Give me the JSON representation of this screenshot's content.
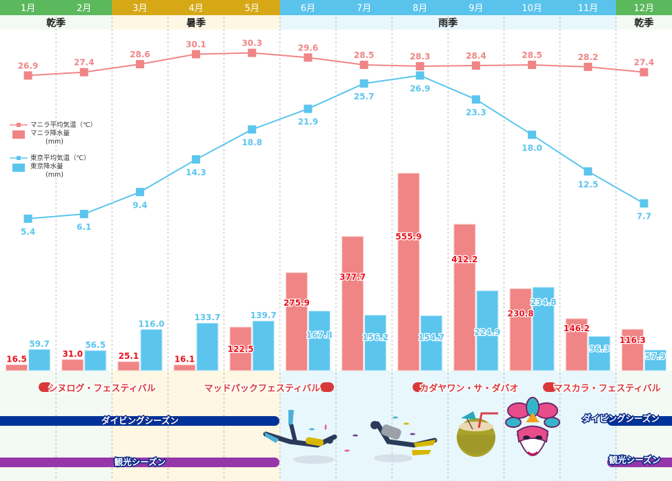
{
  "chart_data": {
    "type": "bar+line",
    "title": "",
    "categories": [
      "1月",
      "2月",
      "3月",
      "4月",
      "5月",
      "6月",
      "7月",
      "8月",
      "9月",
      "10月",
      "11月",
      "12月"
    ],
    "month_colors": [
      "#5cb85c",
      "#5cb85c",
      "#d6a816",
      "#d6a816",
      "#d6a816",
      "#59c3ec",
      "#59c3ec",
      "#59c3ec",
      "#59c3ec",
      "#59c3ec",
      "#59c3ec",
      "#5cb85c"
    ],
    "seasons": [
      {
        "label": "乾季",
        "start": 0,
        "end": 1,
        "bg": "#f2faf3"
      },
      {
        "label": "暑季",
        "start": 2,
        "end": 4,
        "bg": "#fdf7e4"
      },
      {
        "label": "雨季",
        "start": 5,
        "end": 10,
        "bg": "#e8f7fc"
      },
      {
        "label": "乾季",
        "start": 11,
        "end": 11,
        "bg": "#f2faf3"
      }
    ],
    "series": [
      {
        "name": "マニラ平均気温（℃）",
        "kind": "line",
        "color": "#f08585",
        "values": [
          26.9,
          27.4,
          28.6,
          30.1,
          30.3,
          29.6,
          28.5,
          28.3,
          28.4,
          28.5,
          28.2,
          27.4
        ]
      },
      {
        "name": "マニラ降水量（mm）",
        "kind": "bar",
        "color": "#f08585",
        "label_color": "#e8101c",
        "values": [
          16.5,
          31.0,
          25.1,
          16.1,
          122.5,
          275.9,
          377.7,
          555.9,
          412.2,
          230.8,
          146.2,
          116.3
        ]
      },
      {
        "name": "東京平均気温（℃）",
        "kind": "line",
        "color": "#5bc5ee",
        "values": [
          5.4,
          6.1,
          9.4,
          14.3,
          18.8,
          21.9,
          25.7,
          26.9,
          23.3,
          18.0,
          12.5,
          7.7
        ]
      },
      {
        "name": "東京降水量（mm）",
        "kind": "bar",
        "color": "#5bc5ee",
        "label_color": "#5bc5ee",
        "values": [
          59.7,
          56.5,
          116.0,
          133.7,
          139.7,
          167.8,
          156.2,
          154.7,
          224.9,
          234.8,
          96.3,
          57.9
        ]
      }
    ],
    "legend": {
      "position": "left",
      "items": [
        {
          "label1": "マニラ平均気温（℃）",
          "type": "line",
          "color": "#f08585"
        },
        {
          "label1": "マニラ降水量",
          "label2": "(mm)",
          "type": "bar",
          "color": "#f08585"
        },
        {
          "label1": "東京平均気温（℃）",
          "type": "line",
          "color": "#5bc5ee"
        },
        {
          "label1": "東京降水量",
          "label2": "(mm)",
          "type": "bar",
          "color": "#5bc5ee"
        }
      ]
    },
    "temp_range": [
      0,
      35
    ],
    "precip_range": [
      0,
      600
    ],
    "grid": "vertical dashed month separators"
  },
  "events": {
    "festivals": [
      {
        "label": "シヌログ・フェスティバル",
        "month": 1,
        "side": "left"
      },
      {
        "label": "マッドパックフェスティバル",
        "month": 5,
        "side": "right"
      },
      {
        "label": "カダヤワン・サ・ダバオ",
        "month": 8,
        "side": "left"
      },
      {
        "label": "マスカラ・フェスティバル",
        "month": 10,
        "side": "left"
      }
    ],
    "seasons_bars": [
      {
        "label": "ダイビングシーズン",
        "color": "#003399",
        "ranges": [
          [
            0,
            4
          ],
          [
            11,
            11
          ]
        ]
      },
      {
        "label": "観光シーズン",
        "color": "#9536a9",
        "ranges": [
          [
            0,
            4
          ],
          [
            11,
            11
          ]
        ]
      }
    ],
    "illustrations": [
      "divers-illustration",
      "coconut-drink-icon",
      "festival-mask-icon"
    ]
  }
}
